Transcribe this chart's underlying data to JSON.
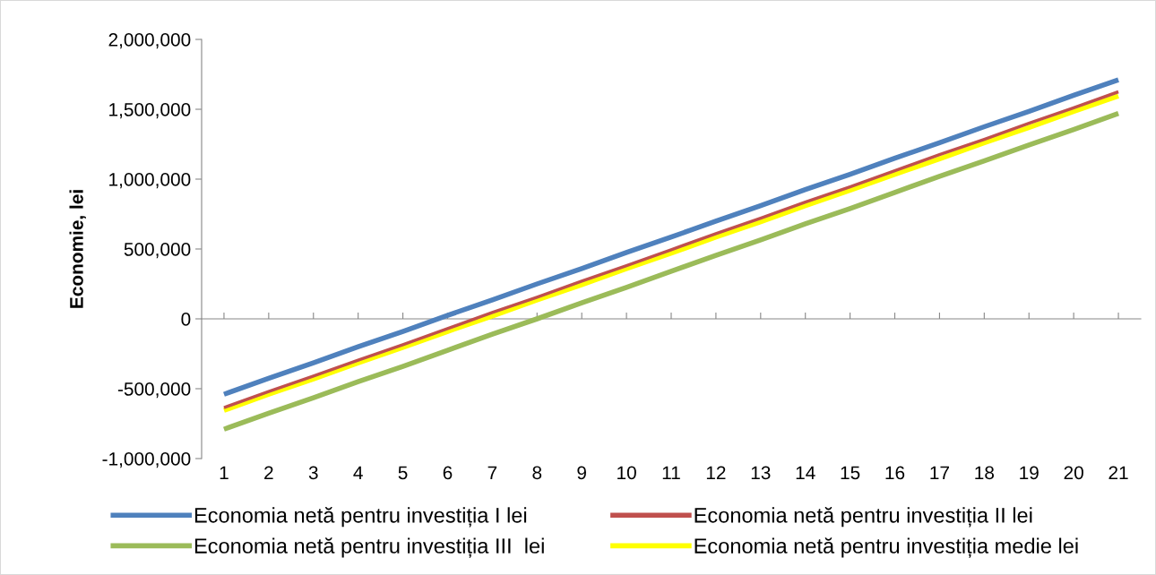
{
  "chart_data": {
    "type": "line",
    "ylabel": "Economie, lei",
    "categories": [
      "1",
      "2",
      "3",
      "4",
      "5",
      "6",
      "7",
      "8",
      "9",
      "10",
      "11",
      "12",
      "13",
      "14",
      "15",
      "16",
      "17",
      "18",
      "19",
      "20",
      "21"
    ],
    "series": [
      {
        "name": "Economia netă pentru investiția I lei",
        "color": "#4f81bd",
        "values": [
          -540000,
          -425000,
          -315000,
          -200000,
          -90000,
          25000,
          135000,
          250000,
          360000,
          475000,
          585000,
          700000,
          810000,
          925000,
          1035000,
          1150000,
          1260000,
          1375000,
          1485000,
          1600000,
          1710000
        ]
      },
      {
        "name": "Economia netă pentru investiția II lei",
        "color": "#c0504d",
        "values": [
          -635000,
          -520000,
          -410000,
          -295000,
          -185000,
          -70000,
          45000,
          155000,
          270000,
          380000,
          495000,
          610000,
          720000,
          835000,
          945000,
          1060000,
          1175000,
          1285000,
          1400000,
          1510000,
          1625000
        ]
      },
      {
        "name": "Economia netă pentru investiția III  lei",
        "color": "#9bbb59",
        "values": [
          -790000,
          -675000,
          -565000,
          -450000,
          -340000,
          -225000,
          -110000,
          0,
          115000,
          225000,
          340000,
          455000,
          565000,
          680000,
          790000,
          905000,
          1020000,
          1130000,
          1245000,
          1355000,
          1470000
        ]
      },
      {
        "name": "Economia netă pentru investiția medie lei",
        "color": "#ffff00",
        "values": [
          -655000,
          -540000,
          -430000,
          -315000,
          -205000,
          -90000,
          20000,
          135000,
          245000,
          360000,
          470000,
          585000,
          695000,
          810000,
          920000,
          1035000,
          1145000,
          1260000,
          1370000,
          1485000,
          1595000
        ]
      }
    ],
    "ylim": [
      -1000000,
      2000000
    ],
    "yticks": [
      {
        "value": -1000000,
        "label": "-1,000,000"
      },
      {
        "value": -500000,
        "label": "-500,000"
      },
      {
        "value": 0,
        "label": "0"
      },
      {
        "value": 500000,
        "label": "500,000"
      },
      {
        "value": 1000000,
        "label": "1,000,000"
      },
      {
        "value": 1500000,
        "label": "1,500,000"
      },
      {
        "value": 2000000,
        "label": "2,000,000"
      }
    ],
    "legend": "bottom",
    "marker": "none",
    "line_style": "solid"
  }
}
